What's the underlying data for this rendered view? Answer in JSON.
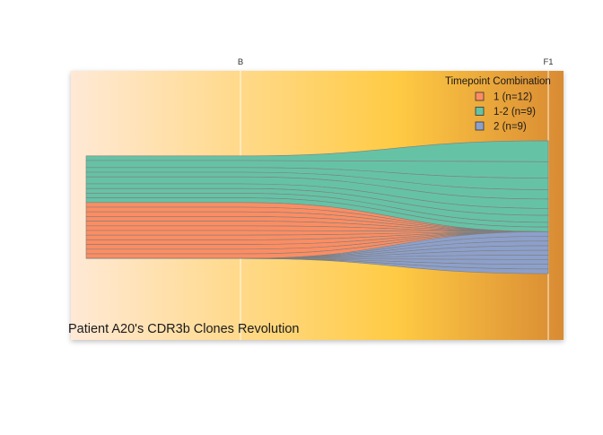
{
  "chart_data": {
    "type": "area",
    "title": "Patient A20's CDR3b Clones Revolution",
    "timepoints": [
      "B",
      "F1"
    ],
    "xlabel": "",
    "ylabel": "",
    "legend": {
      "title": "Timepoint Combination",
      "placement": "top-right",
      "items": [
        {
          "label": "1 (n=12)",
          "color": "#FC8D62"
        },
        {
          "label": "1-2 (n=9)",
          "color": "#66C2A5"
        },
        {
          "label": "2 (n=9)",
          "color": "#8DA0CB"
        }
      ]
    },
    "background_gradient": [
      "#FFE9D6",
      "#FFCB44",
      "#D98B33"
    ],
    "series": [
      {
        "combination": "1-2",
        "values": [
          0.02,
          0.09
        ]
      },
      {
        "combination": "1-2",
        "values": [
          0.03,
          0.07
        ]
      },
      {
        "combination": "1-2",
        "values": [
          0.02,
          0.05
        ]
      },
      {
        "combination": "1-2",
        "values": [
          0.02,
          0.04
        ]
      },
      {
        "combination": "1-2",
        "values": [
          0.03,
          0.04
        ]
      },
      {
        "combination": "1-2",
        "values": [
          0.02,
          0.03
        ]
      },
      {
        "combination": "1-2",
        "values": [
          0.02,
          0.03
        ]
      },
      {
        "combination": "1-2",
        "values": [
          0.02,
          0.02
        ]
      },
      {
        "combination": "1-2",
        "values": [
          0.02,
          0.02
        ]
      },
      {
        "combination": "1",
        "values": [
          0.02,
          0.0
        ]
      },
      {
        "combination": "1",
        "values": [
          0.02,
          0.0
        ]
      },
      {
        "combination": "1",
        "values": [
          0.02,
          0.0
        ]
      },
      {
        "combination": "1",
        "values": [
          0.02,
          0.0
        ]
      },
      {
        "combination": "1",
        "values": [
          0.02,
          0.0
        ]
      },
      {
        "combination": "1",
        "values": [
          0.02,
          0.0
        ]
      },
      {
        "combination": "1",
        "values": [
          0.02,
          0.0
        ]
      },
      {
        "combination": "1",
        "values": [
          0.02,
          0.0
        ]
      },
      {
        "combination": "1",
        "values": [
          0.02,
          0.0
        ]
      },
      {
        "combination": "1",
        "values": [
          0.02,
          0.0
        ]
      },
      {
        "combination": "1",
        "values": [
          0.02,
          0.0
        ]
      },
      {
        "combination": "1",
        "values": [
          0.02,
          0.0
        ]
      },
      {
        "combination": "2",
        "values": [
          0.0,
          0.02
        ]
      },
      {
        "combination": "2",
        "values": [
          0.0,
          0.02
        ]
      },
      {
        "combination": "2",
        "values": [
          0.0,
          0.02
        ]
      },
      {
        "combination": "2",
        "values": [
          0.0,
          0.02
        ]
      },
      {
        "combination": "2",
        "values": [
          0.0,
          0.02
        ]
      },
      {
        "combination": "2",
        "values": [
          0.0,
          0.02
        ]
      },
      {
        "combination": "2",
        "values": [
          0.0,
          0.02
        ]
      },
      {
        "combination": "2",
        "values": [
          0.0,
          0.02
        ]
      },
      {
        "combination": "2",
        "values": [
          0.0,
          0.02
        ]
      }
    ]
  }
}
